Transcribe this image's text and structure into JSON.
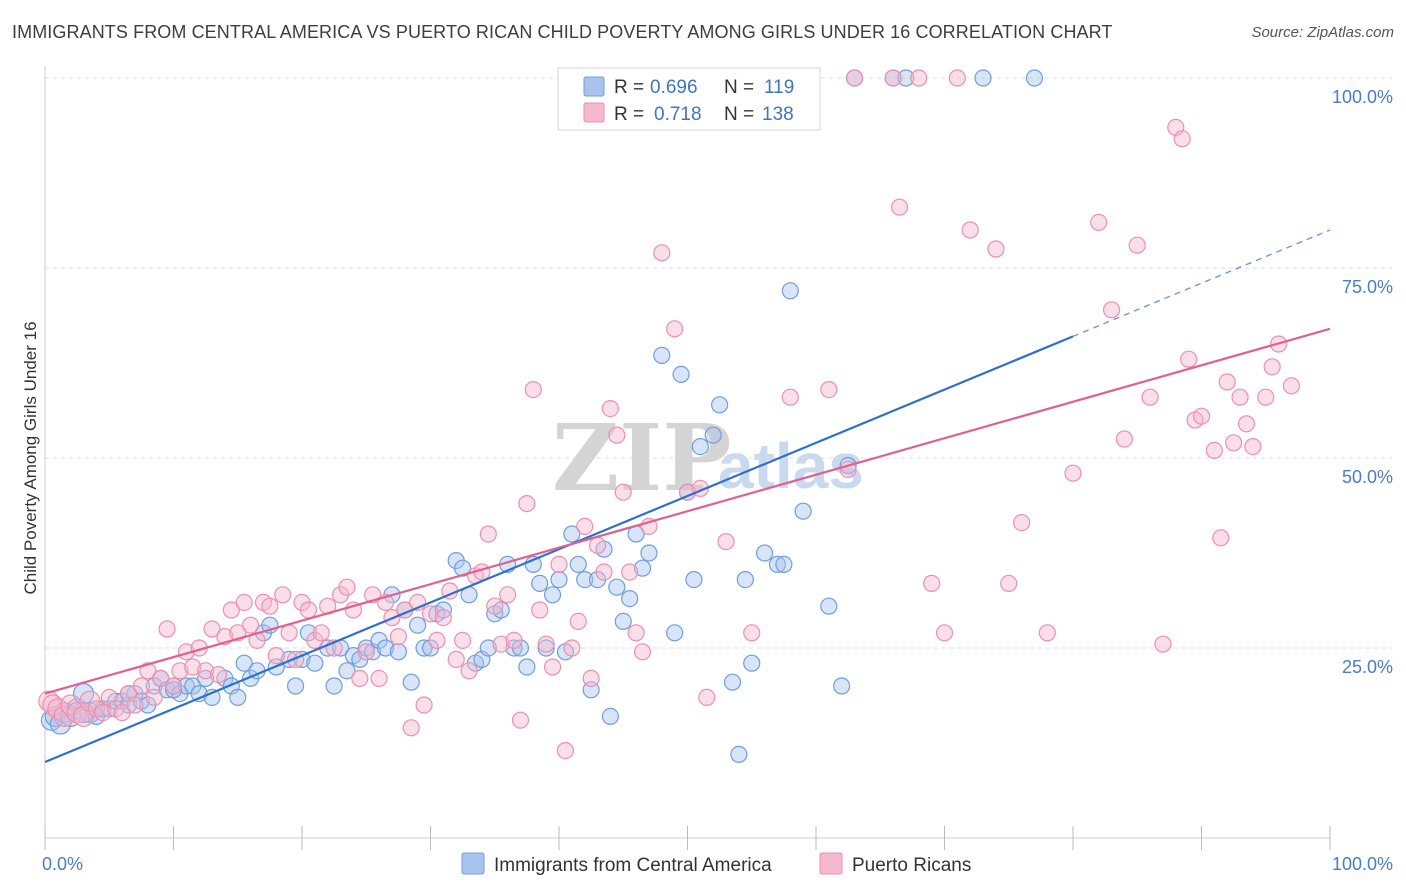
{
  "title": "IMMIGRANTS FROM CENTRAL AMERICA VS PUERTO RICAN CHILD POVERTY AMONG GIRLS UNDER 16 CORRELATION CHART",
  "source": "Source: ZipAtlas.com",
  "watermark": {
    "zip": "ZIP",
    "atlas": "atlas"
  },
  "colors": {
    "blue_fill": "#a8c4ee",
    "blue_stroke": "#6f9ee0",
    "blue_line": "#2f6fce",
    "pink_fill": "#f6b8cc",
    "pink_stroke": "#ee8fad",
    "pink_line": "#e06090",
    "grid": "#dddddd",
    "axis_text": "#4a7cc9"
  },
  "legend": {
    "rows": [
      {
        "r_label": "R =",
        "r_value": "0.696",
        "n_label": "N =",
        "n_value": "119"
      },
      {
        "r_label": "R =",
        "r_value": "0.718",
        "n_label": "N =",
        "n_value": "138"
      }
    ]
  },
  "chart_data": {
    "type": "scatter",
    "xlabel": "",
    "ylabel": "Child Poverty Among Girls Under 16",
    "xlim": [
      0,
      100
    ],
    "ylim": [
      0,
      100
    ],
    "x_tick_labels": [
      "0.0%",
      "100.0%"
    ],
    "y_tick_values": [
      25,
      50,
      75,
      100
    ],
    "y_tick_labels": [
      "25.0%",
      "50.0%",
      "75.0%",
      "100.0%"
    ],
    "grid": true,
    "series": [
      {
        "name": "Immigrants from Central America",
        "color": "#a8c4ee",
        "trend": {
          "x": [
            0,
            80
          ],
          "y": [
            10,
            66
          ],
          "dashed_to": [
            100,
            80
          ]
        },
        "points": [
          [
            0.5,
            15.5
          ],
          [
            0.8,
            16
          ],
          [
            1.2,
            15
          ],
          [
            1.5,
            16.5
          ],
          [
            2,
            16
          ],
          [
            2.5,
            17
          ],
          [
            3,
            19
          ],
          [
            3.5,
            16.5
          ],
          [
            4,
            16
          ],
          [
            4.5,
            17
          ],
          [
            5,
            17
          ],
          [
            5.5,
            18
          ],
          [
            6,
            18
          ],
          [
            6.5,
            17.5
          ],
          [
            7,
            19
          ],
          [
            7.5,
            18
          ],
          [
            8,
            17.5
          ],
          [
            8.5,
            20
          ],
          [
            9,
            21
          ],
          [
            9.5,
            19.5
          ],
          [
            10,
            20
          ],
          [
            10.5,
            19
          ],
          [
            11,
            20
          ],
          [
            11.5,
            20
          ],
          [
            12,
            19
          ],
          [
            12.5,
            21
          ],
          [
            13,
            18.5
          ],
          [
            14,
            21
          ],
          [
            14.5,
            20
          ],
          [
            15,
            18.5
          ],
          [
            15.5,
            23
          ],
          [
            16,
            21
          ],
          [
            16.5,
            22
          ],
          [
            17,
            27
          ],
          [
            17.5,
            28
          ],
          [
            18,
            22.5
          ],
          [
            19,
            23.5
          ],
          [
            19.5,
            20
          ],
          [
            20,
            23.5
          ],
          [
            20.5,
            27
          ],
          [
            21,
            23
          ],
          [
            22,
            25
          ],
          [
            22.5,
            20
          ],
          [
            23,
            25
          ],
          [
            23.5,
            22
          ],
          [
            24,
            24
          ],
          [
            24.5,
            23.5
          ],
          [
            25,
            25
          ],
          [
            25.5,
            24.5
          ],
          [
            26,
            26
          ],
          [
            26.5,
            25
          ],
          [
            27,
            32
          ],
          [
            27.5,
            24.5
          ],
          [
            28,
            30
          ],
          [
            28.5,
            20.5
          ],
          [
            29,
            28
          ],
          [
            29.5,
            25
          ],
          [
            30,
            25
          ],
          [
            30.5,
            29.5
          ],
          [
            31,
            30
          ],
          [
            32,
            36.5
          ],
          [
            32.5,
            35.5
          ],
          [
            33,
            32
          ],
          [
            33.5,
            23
          ],
          [
            34,
            23.5
          ],
          [
            34.5,
            25
          ],
          [
            35,
            29.5
          ],
          [
            35.5,
            30
          ],
          [
            36,
            36
          ],
          [
            36.5,
            25
          ],
          [
            37,
            25
          ],
          [
            37.5,
            22.5
          ],
          [
            38,
            36
          ],
          [
            38.5,
            33.5
          ],
          [
            39,
            25
          ],
          [
            39.5,
            32
          ],
          [
            40,
            34
          ],
          [
            40.5,
            24.5
          ],
          [
            41,
            40
          ],
          [
            41.5,
            36
          ],
          [
            42,
            34
          ],
          [
            42.5,
            19.5
          ],
          [
            43,
            34
          ],
          [
            43.5,
            38
          ],
          [
            44,
            16
          ],
          [
            44.5,
            33
          ],
          [
            45,
            28.5
          ],
          [
            45.5,
            31.5
          ],
          [
            46,
            40
          ],
          [
            46.5,
            35.5
          ],
          [
            47,
            37.5
          ],
          [
            48,
            63.5
          ],
          [
            49,
            27
          ],
          [
            49.5,
            61
          ],
          [
            50,
            45.5
          ],
          [
            50.5,
            34
          ],
          [
            51,
            51.5
          ],
          [
            52,
            53
          ],
          [
            52.5,
            57
          ],
          [
            53.5,
            20.5
          ],
          [
            54,
            11
          ],
          [
            54.5,
            34
          ],
          [
            55,
            23
          ],
          [
            56,
            37.5
          ],
          [
            57,
            36
          ],
          [
            57.5,
            36
          ],
          [
            58,
            72
          ],
          [
            59,
            43
          ],
          [
            61,
            30.5
          ],
          [
            62,
            20
          ],
          [
            62.5,
            49
          ],
          [
            63,
            100
          ],
          [
            66,
            100
          ],
          [
            67,
            100
          ],
          [
            73,
            100
          ],
          [
            77,
            100
          ],
          [
            3,
            16.5
          ],
          [
            6.5,
            19
          ],
          [
            10,
            19.5
          ]
        ]
      },
      {
        "name": "Puerto Ricans",
        "color": "#f6b8cc",
        "trend": {
          "x": [
            0,
            100
          ],
          "y": [
            19,
            67
          ]
        },
        "points": [
          [
            0.3,
            18
          ],
          [
            0.6,
            17.5
          ],
          [
            1,
            17
          ],
          [
            1.5,
            16
          ],
          [
            2,
            17.5
          ],
          [
            2.5,
            16.5
          ],
          [
            3,
            16
          ],
          [
            3.5,
            18
          ],
          [
            4,
            17
          ],
          [
            4.5,
            16.5
          ],
          [
            5,
            18.5
          ],
          [
            5.5,
            17
          ],
          [
            6,
            16.5
          ],
          [
            6.5,
            19
          ],
          [
            7,
            17.5
          ],
          [
            7.5,
            20
          ],
          [
            8,
            22
          ],
          [
            8.5,
            18.5
          ],
          [
            9,
            21
          ],
          [
            9.5,
            27.5
          ],
          [
            10,
            20
          ],
          [
            10.5,
            22
          ],
          [
            11,
            24.5
          ],
          [
            11.5,
            22.5
          ],
          [
            12,
            25
          ],
          [
            12.5,
            22
          ],
          [
            13,
            27.5
          ],
          [
            13.5,
            21.5
          ],
          [
            14,
            26.5
          ],
          [
            14.5,
            30
          ],
          [
            15,
            27
          ],
          [
            15.5,
            31
          ],
          [
            16,
            28
          ],
          [
            16.5,
            26
          ],
          [
            17,
            31
          ],
          [
            17.5,
            30.5
          ],
          [
            18,
            24
          ],
          [
            18.5,
            32
          ],
          [
            19,
            27
          ],
          [
            19.5,
            23.5
          ],
          [
            20,
            31
          ],
          [
            20.5,
            30
          ],
          [
            21,
            26
          ],
          [
            21.5,
            27
          ],
          [
            22,
            30.5
          ],
          [
            22.5,
            25
          ],
          [
            23,
            32
          ],
          [
            23.5,
            33
          ],
          [
            24,
            30
          ],
          [
            24.5,
            21
          ],
          [
            25,
            24.5
          ],
          [
            25.5,
            32
          ],
          [
            26,
            21
          ],
          [
            26.5,
            31
          ],
          [
            27,
            29
          ],
          [
            27.5,
            26.5
          ],
          [
            28,
            30
          ],
          [
            28.5,
            14.5
          ],
          [
            29,
            31
          ],
          [
            29.5,
            17.5
          ],
          [
            30,
            29.5
          ],
          [
            30.5,
            26
          ],
          [
            31,
            29
          ],
          [
            31.5,
            32.5
          ],
          [
            32,
            23.5
          ],
          [
            32.5,
            26
          ],
          [
            33,
            22
          ],
          [
            33.5,
            34.5
          ],
          [
            34,
            35
          ],
          [
            34.5,
            40
          ],
          [
            35,
            30.5
          ],
          [
            35.5,
            25.5
          ],
          [
            36,
            32
          ],
          [
            36.5,
            26
          ],
          [
            37,
            15.5
          ],
          [
            37.5,
            44
          ],
          [
            38,
            59
          ],
          [
            38.5,
            30
          ],
          [
            39,
            25.5
          ],
          [
            39.5,
            22.5
          ],
          [
            40,
            36
          ],
          [
            40.5,
            11.5
          ],
          [
            41,
            25
          ],
          [
            41.5,
            28.5
          ],
          [
            42,
            41
          ],
          [
            42.5,
            21
          ],
          [
            43,
            38.5
          ],
          [
            43.5,
            35
          ],
          [
            44,
            56.5
          ],
          [
            44.5,
            53
          ],
          [
            45,
            45.5
          ],
          [
            45.5,
            35
          ],
          [
            46,
            27
          ],
          [
            46.5,
            24.5
          ],
          [
            47,
            41
          ],
          [
            48,
            77
          ],
          [
            49,
            67
          ],
          [
            50,
            45.5
          ],
          [
            51,
            46
          ],
          [
            51.5,
            18.5
          ],
          [
            53,
            39
          ],
          [
            55,
            27
          ],
          [
            58,
            58
          ],
          [
            61,
            59
          ],
          [
            62.5,
            48.5
          ],
          [
            63,
            100
          ],
          [
            66,
            100
          ],
          [
            66.5,
            83
          ],
          [
            68,
            100
          ],
          [
            69,
            33.5
          ],
          [
            70,
            27
          ],
          [
            71,
            100
          ],
          [
            72,
            80
          ],
          [
            74,
            77.5
          ],
          [
            75,
            33.5
          ],
          [
            76,
            41.5
          ],
          [
            78,
            27
          ],
          [
            80,
            48
          ],
          [
            82,
            81
          ],
          [
            83,
            69.5
          ],
          [
            84,
            52.5
          ],
          [
            85,
            78
          ],
          [
            86,
            58
          ],
          [
            87,
            25.5
          ],
          [
            88,
            93.5
          ],
          [
            88.5,
            92
          ],
          [
            89,
            63
          ],
          [
            89.5,
            55
          ],
          [
            90,
            55.5
          ],
          [
            91,
            51
          ],
          [
            91.5,
            39.5
          ],
          [
            92,
            60
          ],
          [
            92.5,
            52
          ],
          [
            93,
            58
          ],
          [
            93.5,
            54.5
          ],
          [
            94,
            51.5
          ],
          [
            95,
            58
          ],
          [
            95.5,
            62
          ],
          [
            96,
            65
          ],
          [
            97,
            59.5
          ]
        ]
      }
    ]
  }
}
